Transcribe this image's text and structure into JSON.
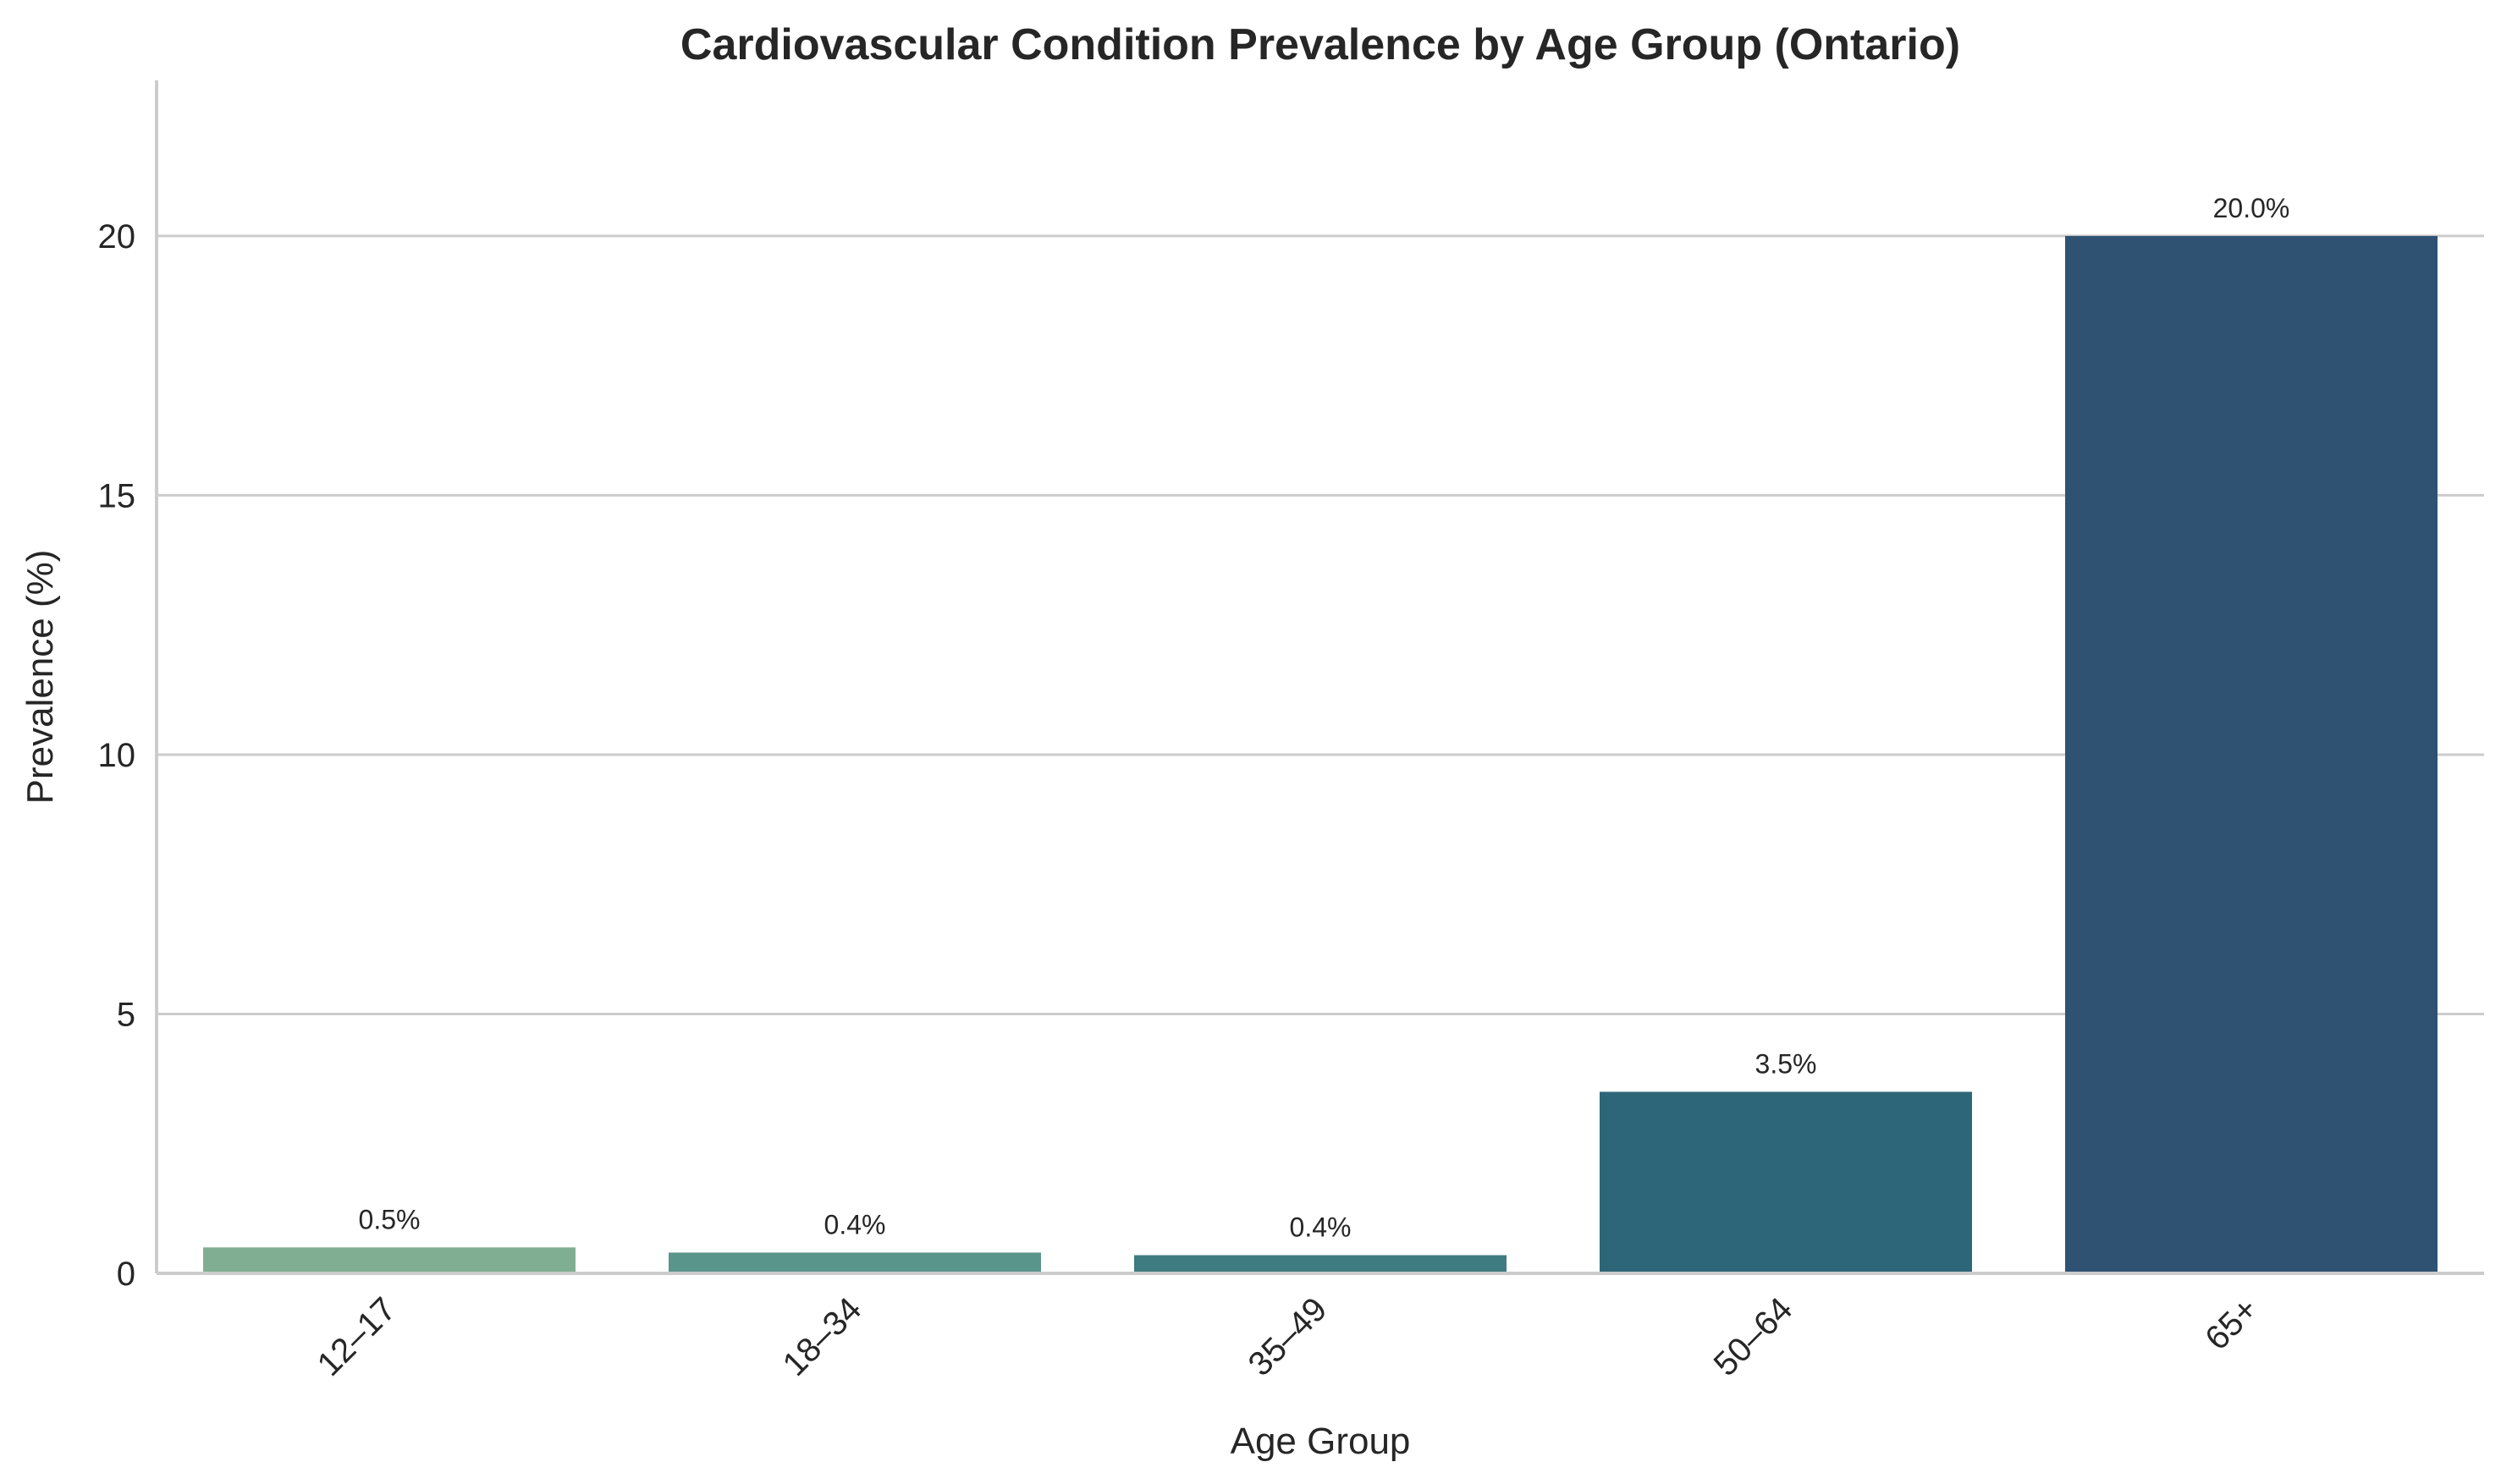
{
  "chart_data": {
    "type": "bar",
    "title": "Cardiovascular Condition Prevalence by Age Group (Ontario)",
    "xlabel": "Age Group",
    "ylabel": "Prevalence (%)",
    "categories": [
      "12–17",
      "18–34",
      "35–49",
      "50–64",
      "65+"
    ],
    "values": [
      0.5,
      0.4,
      0.35,
      3.5,
      20.0
    ],
    "data_labels": [
      "0.5%",
      "0.4%",
      "0.4%",
      "3.5%",
      "20.0%"
    ],
    "colors": [
      "#80ae92",
      "#5a958c",
      "#3f7c82",
      "#2e6679",
      "#2f5273"
    ],
    "ylim": [
      0,
      23
    ],
    "yticks": [
      0,
      5,
      10,
      15,
      20
    ],
    "grid": "horizontal",
    "legend": "none"
  }
}
